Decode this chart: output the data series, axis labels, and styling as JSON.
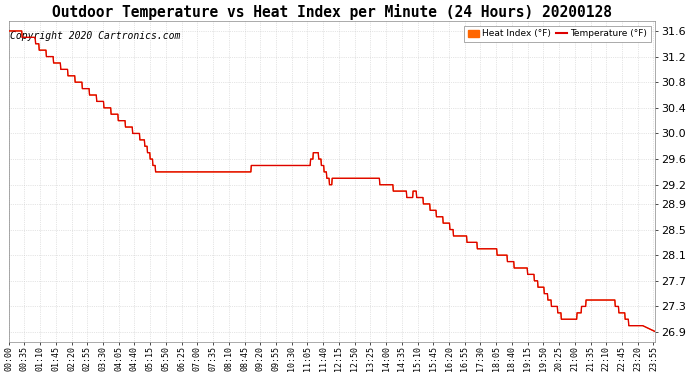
{
  "title": "Outdoor Temperature vs Heat Index per Minute (24 Hours) 20200128",
  "copyright": "Copyright 2020 Cartronics.com",
  "ylim": [
    26.75,
    31.75
  ],
  "yticks": [
    26.9,
    27.3,
    27.7,
    28.1,
    28.5,
    28.9,
    29.2,
    29.6,
    30.0,
    30.4,
    30.8,
    31.2,
    31.6
  ],
  "bg_color": "#ffffff",
  "grid_color": "#cccccc",
  "line_color": "#dd0000",
  "legend_hi_bg": "#ff6600",
  "legend_hi_text": "Heat Index (°F)",
  "legend_temp_text": "Temperature (°F)",
  "title_fontsize": 10.5,
  "copyright_fontsize": 7
}
